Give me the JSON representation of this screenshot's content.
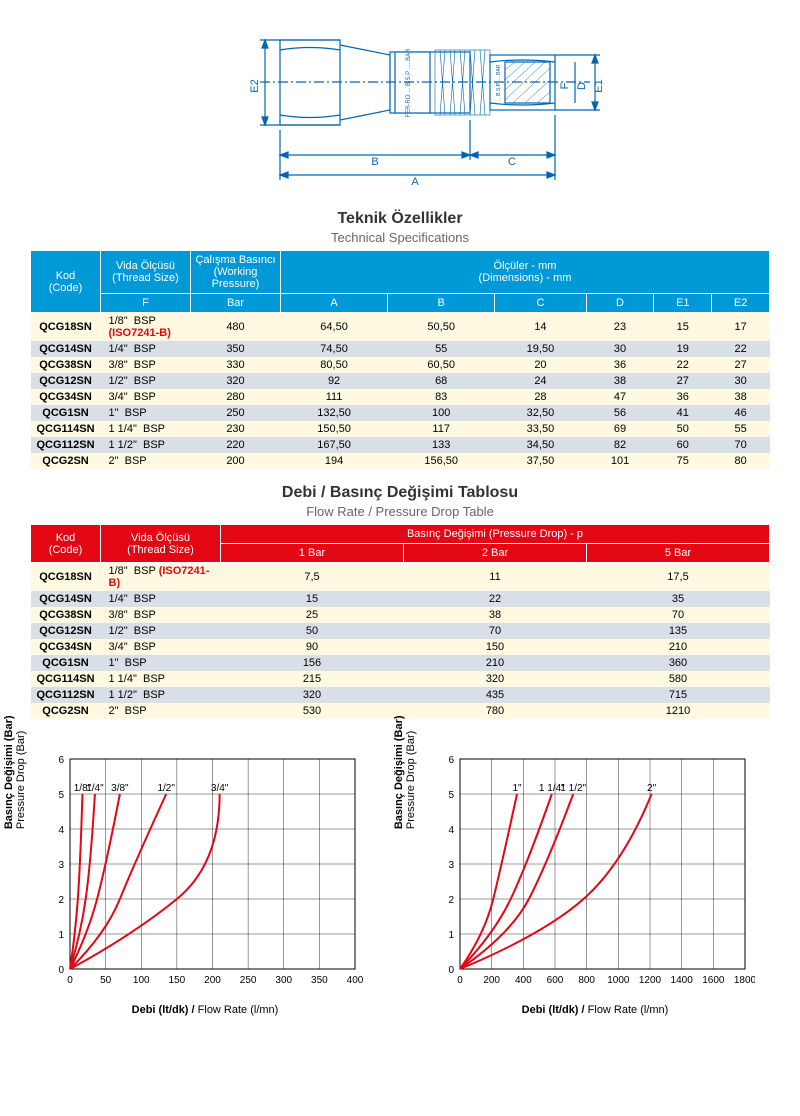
{
  "diagram": {
    "labels": {
      "A": "A",
      "B": "B",
      "C": "C",
      "D": "D",
      "E1": "E1",
      "E2": "E2",
      "F": "F"
    },
    "marking1": "FER-RO ... B.S.P .... BAR",
    "marking2": "... B.S.P .... BAR",
    "stroke_color": "#0066b3",
    "hatch_color": "#0066b3"
  },
  "table1": {
    "title_tr": "Teknik Özellikler",
    "title_en": "Technical Specifications",
    "header_bg": "#0099d8",
    "header_color": "#ffffff",
    "row_colors": [
      "#fef9e0",
      "#d9dfe6"
    ],
    "headers": {
      "kod": {
        "tr": "Kod",
        "en": "(Code)"
      },
      "vida": {
        "tr": "Vida Ölçüsü",
        "en": "(Thread Size)",
        "sub": "F"
      },
      "basinc": {
        "tr": "Çalışma Basıncı",
        "en": "(Working Pressure)",
        "sub": "Bar"
      },
      "olculer": {
        "tr": "Ölçüler - mm",
        "en": "(Dimensions) - mm"
      },
      "dims": [
        "A",
        "B",
        "C",
        "D",
        "E1",
        "E2"
      ]
    },
    "rows": [
      {
        "code": "QCG18SN",
        "thread": "1/8\"",
        "std": "BSP",
        "iso": "(ISO7241-B)",
        "bar": "480",
        "a": "64,50",
        "b": "50,50",
        "c": "14",
        "d": "23",
        "e1": "15",
        "e2": "17"
      },
      {
        "code": "QCG14SN",
        "thread": "1/4\"",
        "std": "BSP",
        "iso": "",
        "bar": "350",
        "a": "74,50",
        "b": "55",
        "c": "19,50",
        "d": "30",
        "e1": "19",
        "e2": "22"
      },
      {
        "code": "QCG38SN",
        "thread": "3/8\"",
        "std": "BSP",
        "iso": "",
        "bar": "330",
        "a": "80,50",
        "b": "60,50",
        "c": "20",
        "d": "36",
        "e1": "22",
        "e2": "27"
      },
      {
        "code": "QCG12SN",
        "thread": "1/2\"",
        "std": "BSP",
        "iso": "",
        "bar": "320",
        "a": "92",
        "b": "68",
        "c": "24",
        "d": "38",
        "e1": "27",
        "e2": "30"
      },
      {
        "code": "QCG34SN",
        "thread": "3/4\"",
        "std": "BSP",
        "iso": "",
        "bar": "280",
        "a": "111",
        "b": "83",
        "c": "28",
        "d": "47",
        "e1": "36",
        "e2": "38"
      },
      {
        "code": "QCG1SN",
        "thread": "1\"",
        "std": "BSP",
        "iso": "",
        "bar": "250",
        "a": "132,50",
        "b": "100",
        "c": "32,50",
        "d": "56",
        "e1": "41",
        "e2": "46"
      },
      {
        "code": "QCG114SN",
        "thread": "1 1/4\"",
        "std": "BSP",
        "iso": "",
        "bar": "230",
        "a": "150,50",
        "b": "117",
        "c": "33,50",
        "d": "69",
        "e1": "50",
        "e2": "55"
      },
      {
        "code": "QCG112SN",
        "thread": "1 1/2\"",
        "std": "BSP",
        "iso": "",
        "bar": "220",
        "a": "167,50",
        "b": "133",
        "c": "34,50",
        "d": "82",
        "e1": "60",
        "e2": "70"
      },
      {
        "code": "QCG2SN",
        "thread": "2\"",
        "std": "BSP",
        "iso": "",
        "bar": "200",
        "a": "194",
        "b": "156,50",
        "c": "37,50",
        "d": "101",
        "e1": "75",
        "e2": "80"
      }
    ]
  },
  "table2": {
    "title_tr": "Debi / Basınç Değişimi Tablosu",
    "title_en": "Flow Rate / Pressure Drop Table",
    "header_bg": "#e30613",
    "headers": {
      "kod": {
        "tr": "Kod",
        "en": "(Code)"
      },
      "vida": {
        "tr": "Vida Ölçüsü",
        "en": "(Thread Size)"
      },
      "basinc": "Basınç Değişimi (Pressure Drop) -    p",
      "bars": [
        "1 Bar",
        "2 Bar",
        "5 Bar"
      ]
    },
    "rows": [
      {
        "code": "QCG18SN",
        "thread": "1/8\"",
        "std": "BSP",
        "iso": "(ISO7241-B)",
        "b1": "7,5",
        "b2": "11",
        "b5": "17,5"
      },
      {
        "code": "QCG14SN",
        "thread": "1/4\"",
        "std": "BSP",
        "iso": "",
        "b1": "15",
        "b2": "22",
        "b5": "35"
      },
      {
        "code": "QCG38SN",
        "thread": "3/8\"",
        "std": "BSP",
        "iso": "",
        "b1": "25",
        "b2": "38",
        "b5": "70"
      },
      {
        "code": "QCG12SN",
        "thread": "1/2\"",
        "std": "BSP",
        "iso": "",
        "b1": "50",
        "b2": "70",
        "b5": "135"
      },
      {
        "code": "QCG34SN",
        "thread": "3/4\"",
        "std": "BSP",
        "iso": "",
        "b1": "90",
        "b2": "150",
        "b5": "210"
      },
      {
        "code": "QCG1SN",
        "thread": "1\"",
        "std": "BSP",
        "iso": "",
        "b1": "156",
        "b2": "210",
        "b5": "360"
      },
      {
        "code": "QCG114SN",
        "thread": "1 1/4\"",
        "std": "BSP",
        "iso": "",
        "b1": "215",
        "b2": "320",
        "b5": "580"
      },
      {
        "code": "QCG112SN",
        "thread": "1 1/2\"",
        "std": "BSP",
        "iso": "",
        "b1": "320",
        "b2": "435",
        "b5": "715"
      },
      {
        "code": "QCG2SN",
        "thread": "2\"",
        "std": "BSP",
        "iso": "",
        "b1": "530",
        "b2": "780",
        "b5": "1210"
      }
    ]
  },
  "chart1": {
    "type": "line",
    "y_label_tr": "Basınç Değişimi (Bar)",
    "y_label_en": "Pressure Drop (Bar)",
    "x_label_tr": "Debi (lt/dk) /",
    "x_label_en": " Flow Rate (l/mn)",
    "xlim": [
      0,
      400
    ],
    "ylim": [
      0,
      6
    ],
    "xticks": [
      0,
      50,
      100,
      150,
      200,
      250,
      300,
      350,
      400
    ],
    "yticks": [
      0,
      1,
      2,
      3,
      4,
      5,
      6
    ],
    "line_color": "#e30613",
    "grid_color": "#333333",
    "series": [
      {
        "label": "1/8\"",
        "points": [
          [
            0,
            0
          ],
          [
            7.5,
            1
          ],
          [
            11,
            2
          ],
          [
            17.5,
            5
          ]
        ]
      },
      {
        "label": "1/4\"",
        "points": [
          [
            0,
            0
          ],
          [
            15,
            1
          ],
          [
            22,
            2
          ],
          [
            35,
            5
          ]
        ]
      },
      {
        "label": "3/8\"",
        "points": [
          [
            0,
            0
          ],
          [
            25,
            1
          ],
          [
            38,
            2
          ],
          [
            70,
            5
          ]
        ]
      },
      {
        "label": "1/2\"",
        "points": [
          [
            0,
            0
          ],
          [
            50,
            1
          ],
          [
            70,
            2
          ],
          [
            135,
            5
          ]
        ]
      },
      {
        "label": "3/4\"",
        "points": [
          [
            0,
            0
          ],
          [
            90,
            1
          ],
          [
            150,
            2
          ],
          [
            210,
            5
          ]
        ]
      }
    ]
  },
  "chart2": {
    "type": "line",
    "y_label_tr": "Basınç Değişimi (Bar)",
    "y_label_en": "Pressure Drop (Bar)",
    "x_label_tr": "Debi (lt/dk) /",
    "x_label_en": " Flow Rate (l/mn)",
    "xlim": [
      0,
      1800
    ],
    "ylim": [
      0,
      6
    ],
    "xticks": [
      0,
      200,
      400,
      600,
      800,
      1000,
      1200,
      1400,
      1600,
      1800
    ],
    "yticks": [
      0,
      1,
      2,
      3,
      4,
      5,
      6
    ],
    "line_color": "#e30613",
    "grid_color": "#333333",
    "series": [
      {
        "label": "1\"",
        "points": [
          [
            0,
            0
          ],
          [
            156,
            1
          ],
          [
            210,
            2
          ],
          [
            360,
            5
          ]
        ]
      },
      {
        "label": "1 1/4\"",
        "points": [
          [
            0,
            0
          ],
          [
            215,
            1
          ],
          [
            320,
            2
          ],
          [
            580,
            5
          ]
        ]
      },
      {
        "label": "1 1/2\"",
        "points": [
          [
            0,
            0
          ],
          [
            320,
            1
          ],
          [
            435,
            2
          ],
          [
            715,
            5
          ]
        ]
      },
      {
        "label": "2\"",
        "points": [
          [
            0,
            0
          ],
          [
            530,
            1
          ],
          [
            780,
            2
          ],
          [
            1210,
            5
          ]
        ]
      }
    ]
  }
}
